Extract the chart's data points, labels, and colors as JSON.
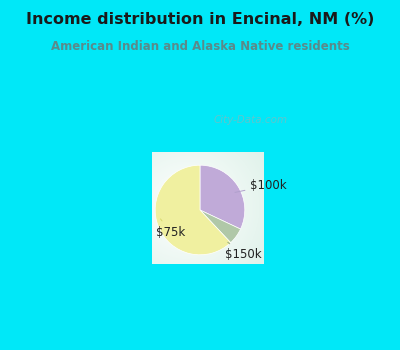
{
  "title": "Income distribution in Encinal, NM (%)",
  "subtitle": "American Indian and Alaska Native residents",
  "slices": [
    {
      "label": "$75k",
      "value": 62,
      "color": "#f0f0a0"
    },
    {
      "label": "$100k",
      "value": 32,
      "color": "#c0aad8"
    },
    {
      "label": "$150k",
      "value": 6,
      "color": "#b0c8a8"
    }
  ],
  "startangle": 90,
  "bg_color": "#00e8f8",
  "title_color": "#1a1a1a",
  "subtitle_color": "#5a8a8a",
  "label_color": "#222222",
  "watermark": "City-Data.com"
}
